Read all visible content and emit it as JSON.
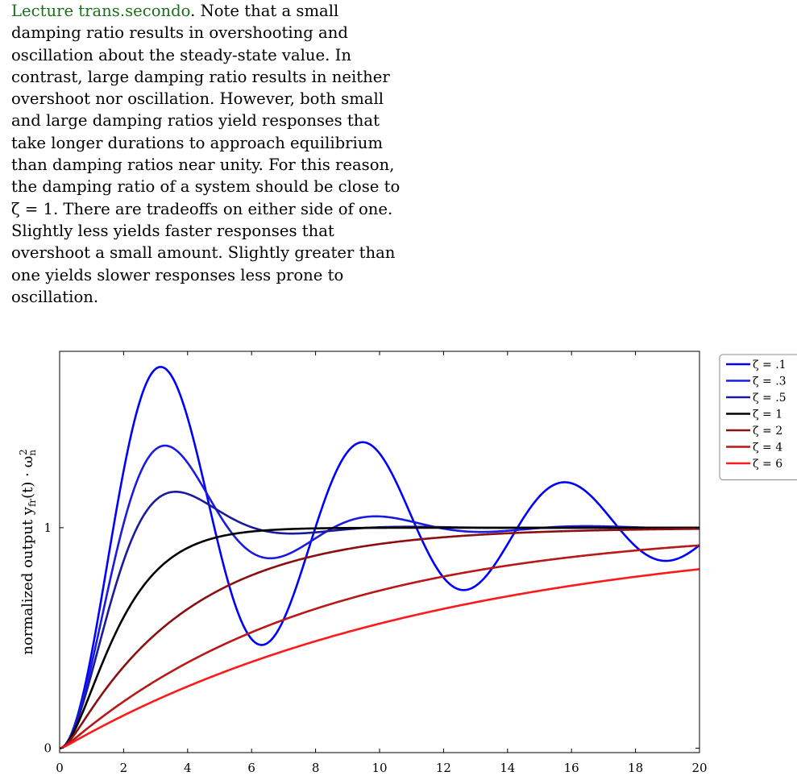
{
  "paragraph": {
    "link_text": "Lecture trans.secondo",
    "line1_rest": ". Note that a small",
    "lines": [
      "damping ratio results in overshooting and",
      "oscillation about the steady-state value. In",
      "contrast, large damping ratio results in neither",
      "overshoot nor oscillation. However, both small",
      "and large damping ratios yield responses that",
      "take longer durations to approach equilibrium",
      "than damping ratios near unity. For this reason,",
      "the damping ratio of a system should be close to",
      "ζ = 1. There are tradeoffs on either side of one.",
      "Slightly less yields faster responses that",
      "overshoot a small amount. Slightly greater than",
      "one yields slower responses less prone to",
      "oscillation."
    ],
    "link_color": "#1b6e1b"
  },
  "chart_data": {
    "type": "line",
    "ylabel": "normalized output y_fr(t) · ω_n^2",
    "xlim": [
      0,
      20
    ],
    "ylim": [
      -0.02,
      1.8
    ],
    "x_ticks": [
      0,
      2,
      4,
      6,
      8,
      10,
      12,
      14,
      16,
      18,
      20
    ],
    "y_ticks": [
      0,
      1
    ],
    "grid": false,
    "legend_position": "outside-top-right",
    "series": [
      {
        "name": "ζ = .1",
        "zeta": 0.1,
        "color": "#0000ff"
      },
      {
        "name": "ζ = .3",
        "zeta": 0.3,
        "color": "#1a1ae0"
      },
      {
        "name": "ζ = .5",
        "zeta": 0.5,
        "color": "#1a1a9a"
      },
      {
        "name": "ζ = 1",
        "zeta": 1,
        "color": "#000000"
      },
      {
        "name": "ζ = 2",
        "zeta": 2,
        "color": "#8a1010"
      },
      {
        "name": "ζ = 4",
        "zeta": 4,
        "color": "#b81818"
      },
      {
        "name": "ζ = 6",
        "zeta": 6,
        "color": "#ff1a1a"
      }
    ]
  }
}
